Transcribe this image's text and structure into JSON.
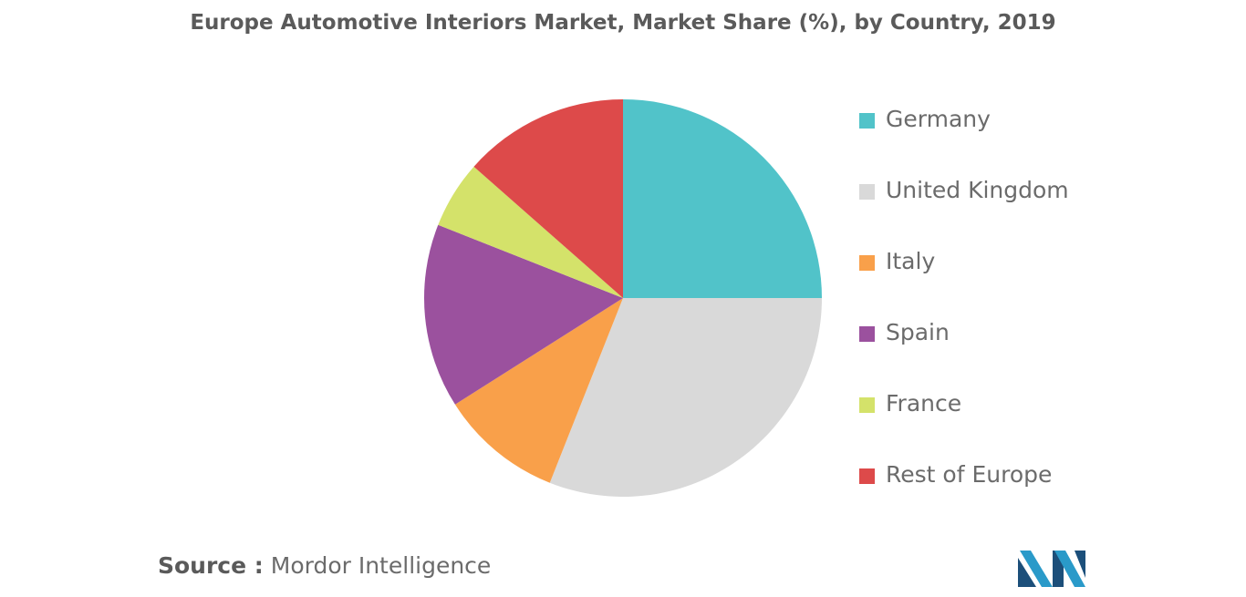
{
  "chart_data": {
    "type": "pie",
    "title": "Europe Automotive Interiors Market, Market Share (%), by Country, 2019",
    "categories": [
      "Germany",
      "United Kingdom",
      "Italy",
      "Spain",
      "France",
      "Rest of Europe"
    ],
    "values": [
      25,
      31,
      10,
      15,
      5.5,
      13.5
    ],
    "colors": [
      "#51c3c9",
      "#d9d9d9",
      "#f9a04a",
      "#9b519e",
      "#d4e26a",
      "#dd4a4a"
    ],
    "start_angle_deg": 0,
    "direction": "clockwise",
    "legend_position": "right"
  },
  "source": {
    "label": "Source :",
    "text": "Mordor Intelligence"
  },
  "logo": {
    "icon": "mordor-intelligence-logo",
    "colors": [
      "#2a9ac9",
      "#1c4f7a"
    ]
  }
}
